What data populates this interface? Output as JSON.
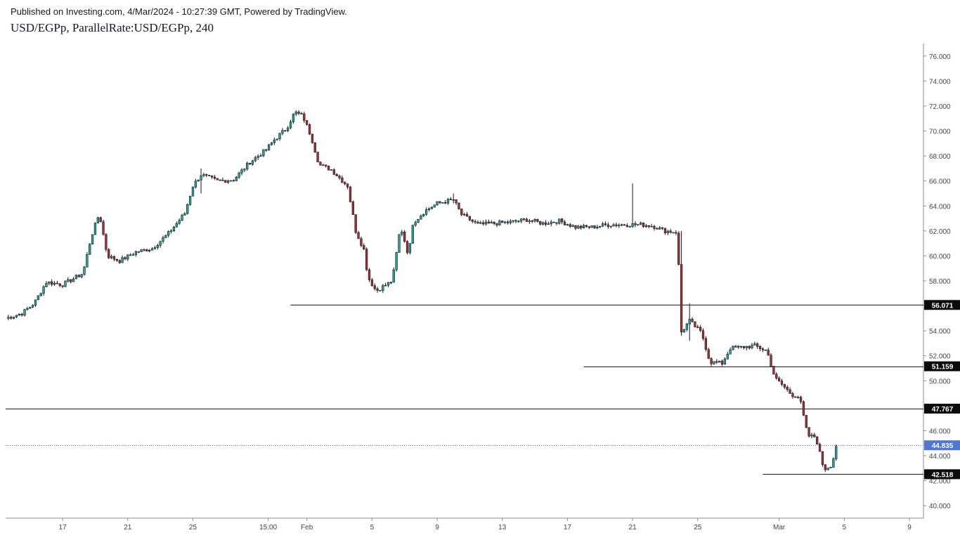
{
  "header": {
    "publisher_line": "Published on Investing.com, 4/Mar/2024 - 10:27:39 GMT, Powered by TradingView.",
    "title": "USD/EGPp, ParallelRate:USD/EGPp, 240"
  },
  "colors": {
    "up": "#26a69a",
    "down": "#a8312c",
    "wick": "#131722",
    "current_price_line": "#5b7bd5",
    "current_price_badge": "#4f78d6",
    "level_badge": "#0b0b0b"
  },
  "chart_data": {
    "type": "candlestick",
    "timeframe": "240",
    "symbol": "USD/EGPp",
    "ylim": [
      39.0,
      77.0
    ],
    "y_ticks": [
      "40.000",
      "42.000",
      "44.000",
      "46.000",
      "48.000",
      "50.000",
      "52.000",
      "54.000",
      "56.000",
      "58.000",
      "60.000",
      "62.000",
      "64.000",
      "66.000",
      "68.000",
      "70.000",
      "72.000",
      "74.000",
      "76.000"
    ],
    "x_ticks": [
      {
        "label": "17",
        "date": "2024-01-17"
      },
      {
        "label": "21",
        "date": "2024-01-21"
      },
      {
        "label": "25",
        "date": "2024-01-25"
      },
      {
        "label": "15:00",
        "date": "2024-01-29T15:00"
      },
      {
        "label": "Feb",
        "date": "2024-02-01"
      },
      {
        "label": "5",
        "date": "2024-02-05"
      },
      {
        "label": "9",
        "date": "2024-02-09"
      },
      {
        "label": "13",
        "date": "2024-02-13"
      },
      {
        "label": "17",
        "date": "2024-02-17"
      },
      {
        "label": "21",
        "date": "2024-02-21"
      },
      {
        "label": "25",
        "date": "2024-02-25"
      },
      {
        "label": "Mar",
        "date": "2024-03-01"
      },
      {
        "label": "5",
        "date": "2024-03-05"
      },
      {
        "label": "9",
        "date": "2024-03-09"
      }
    ],
    "x_range": [
      "2024-01-13T12:00",
      "2024-03-09T00:00"
    ],
    "horizontal_levels": [
      {
        "value": 56.071,
        "label": "56.071",
        "from": "2024-01-31T00:00"
      },
      {
        "value": 51.159,
        "label": "51.159",
        "from": "2024-02-18T00:00"
      },
      {
        "value": 47.767,
        "label": "47.767",
        "from": "2024-01-13T12:00"
      },
      {
        "value": 42.518,
        "label": "42.518",
        "from": "2024-02-29T00:00"
      }
    ],
    "current_price": {
      "value": 44.835,
      "label": "44.835"
    },
    "anchors": [
      [
        "2024-01-13T12:00",
        55.0
      ],
      [
        "2024-01-14T12:00",
        55.4
      ],
      [
        "2024-01-15T06:00",
        56.2
      ],
      [
        "2024-01-16T00:00",
        57.9
      ],
      [
        "2024-01-17T00:00",
        57.7
      ],
      [
        "2024-01-18T06:00",
        58.6
      ],
      [
        "2024-01-18T18:00",
        61.5
      ],
      [
        "2024-01-19T06:00",
        63.4
      ],
      [
        "2024-01-19T18:00",
        60.0
      ],
      [
        "2024-01-20T12:00",
        59.6
      ],
      [
        "2024-01-21T12:00",
        60.3
      ],
      [
        "2024-01-22T12:00",
        60.6
      ],
      [
        "2024-01-23T12:00",
        61.8
      ],
      [
        "2024-01-24T12:00",
        63.4
      ],
      [
        "2024-01-25T00:00",
        65.6
      ],
      [
        "2024-01-25T12:00",
        66.5
      ],
      [
        "2024-01-26T12:00",
        66.0
      ],
      [
        "2024-01-27T12:00",
        66.1
      ],
      [
        "2024-01-28T12:00",
        67.5
      ],
      [
        "2024-01-29T12:00",
        68.5
      ],
      [
        "2024-01-30T00:00",
        69.3
      ],
      [
        "2024-01-30T18:00",
        70.2
      ],
      [
        "2024-01-31T06:00",
        71.5
      ],
      [
        "2024-01-31T18:00",
        71.2
      ],
      [
        "2024-02-01T06:00",
        69.6
      ],
      [
        "2024-02-01T18:00",
        67.3
      ],
      [
        "2024-02-02T12:00",
        66.9
      ],
      [
        "2024-02-03T12:00",
        65.6
      ],
      [
        "2024-02-04T00:00",
        62.0
      ],
      [
        "2024-02-04T12:00",
        60.5
      ],
      [
        "2024-02-04T18:00",
        58.3
      ],
      [
        "2024-02-05T06:00",
        57.2
      ],
      [
        "2024-02-05T18:00",
        57.6
      ],
      [
        "2024-02-06T06:00",
        58.0
      ],
      [
        "2024-02-06T18:00",
        62.4
      ],
      [
        "2024-02-07T06:00",
        60.0
      ],
      [
        "2024-02-07T12:00",
        62.6
      ],
      [
        "2024-02-08T06:00",
        63.6
      ],
      [
        "2024-02-09T00:00",
        64.2
      ],
      [
        "2024-02-10T00:00",
        64.5
      ],
      [
        "2024-02-10T12:00",
        63.3
      ],
      [
        "2024-02-11T12:00",
        62.5
      ],
      [
        "2024-02-12T12:00",
        62.6
      ],
      [
        "2024-02-13T12:00",
        62.7
      ],
      [
        "2024-02-14T12:00",
        62.9
      ],
      [
        "2024-02-15T12:00",
        62.6
      ],
      [
        "2024-02-16T12:00",
        62.8
      ],
      [
        "2024-02-17T12:00",
        62.3
      ],
      [
        "2024-02-18T12:00",
        62.3
      ],
      [
        "2024-02-19T12:00",
        62.5
      ],
      [
        "2024-02-20T12:00",
        62.5
      ],
      [
        "2024-02-21T12:00",
        62.5
      ],
      [
        "2024-02-22T06:00",
        62.4
      ],
      [
        "2024-02-23T00:00",
        62.0
      ],
      [
        "2024-02-23T18:00",
        61.9
      ],
      [
        "2024-02-24T00:00",
        53.9
      ],
      [
        "2024-02-24T12:00",
        54.8
      ],
      [
        "2024-02-25T06:00",
        53.8
      ],
      [
        "2024-02-25T18:00",
        51.5
      ],
      [
        "2024-02-26T12:00",
        51.4
      ],
      [
        "2024-02-27T00:00",
        52.6
      ],
      [
        "2024-02-27T18:00",
        52.7
      ],
      [
        "2024-02-28T12:00",
        52.8
      ],
      [
        "2024-02-29T06:00",
        52.4
      ],
      [
        "2024-02-29T18:00",
        50.2
      ],
      [
        "2024-03-01T06:00",
        49.6
      ],
      [
        "2024-03-01T18:00",
        48.9
      ],
      [
        "2024-03-02T06:00",
        48.7
      ],
      [
        "2024-03-02T18:00",
        45.6
      ],
      [
        "2024-03-03T06:00",
        45.5
      ],
      [
        "2024-03-03T18:00",
        42.9
      ],
      [
        "2024-03-04T06:00",
        43.3
      ],
      [
        "2024-03-04T12:00",
        44.8
      ]
    ],
    "spikes": [
      [
        "2024-01-19T06:00",
        63.5,
        61.0
      ],
      [
        "2024-01-25T12:00",
        67.0,
        65.0
      ],
      [
        "2024-01-31T06:00",
        71.8,
        70.4
      ],
      [
        "2024-02-04T18:00",
        60.8,
        56.1
      ],
      [
        "2024-02-06T18:00",
        62.9,
        58.5
      ],
      [
        "2024-02-10T00:00",
        65.0,
        64.2
      ],
      [
        "2024-02-21T00:00",
        65.8,
        62.3
      ],
      [
        "2024-02-24T00:00",
        62.0,
        53.6
      ],
      [
        "2024-02-24T12:00",
        56.2,
        53.2
      ],
      [
        "2024-03-03T18:00",
        44.8,
        42.5
      ],
      [
        "2024-03-02T18:00",
        47.8,
        45.8
      ]
    ]
  }
}
